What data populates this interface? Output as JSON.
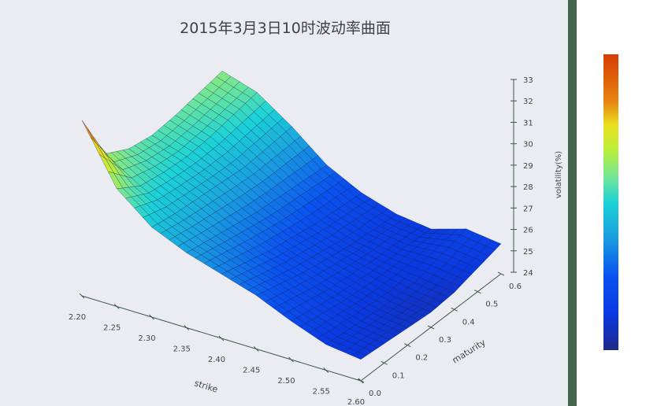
{
  "chart_data": {
    "type": "surface",
    "title": "2015年3月3日10时波动率曲面",
    "xlabel": "strike",
    "ylabel": "maturity",
    "zlabel": "volatility(%)",
    "x_ticks": [
      "2.20",
      "2.25",
      "2.30",
      "2.35",
      "2.40",
      "2.45",
      "2.50",
      "2.55",
      "2.60"
    ],
    "y_ticks": [
      "0.0",
      "0.1",
      "0.2",
      "0.3",
      "0.4",
      "0.5",
      "0.6"
    ],
    "z_ticks": [
      "24",
      "25",
      "26",
      "27",
      "28",
      "29",
      "30",
      "31",
      "32",
      "33"
    ],
    "xlim": [
      2.2,
      2.6
    ],
    "ylim": [
      0,
      0.6
    ],
    "zlim": [
      24,
      33
    ],
    "colorscale": "jet",
    "colorbar": true,
    "grid": true,
    "strikes": [
      2.2,
      2.25,
      2.3,
      2.35,
      2.4,
      2.45,
      2.5,
      2.55,
      2.6
    ],
    "maturities": [
      0.0,
      0.1,
      0.2,
      0.3,
      0.4,
      0.5,
      0.6
    ],
    "volatility": [
      [
        32.2,
        29.5,
        28.2,
        27.5,
        27.0,
        26.5,
        25.8,
        25.2,
        25.0
      ],
      [
        29.8,
        28.8,
        28.0,
        27.3,
        26.7,
        26.2,
        25.6,
        25.1,
        24.9
      ],
      [
        29.2,
        28.6,
        27.9,
        27.1,
        26.4,
        25.9,
        25.4,
        25.0,
        24.8
      ],
      [
        29.0,
        28.5,
        27.8,
        26.9,
        26.2,
        25.7,
        25.3,
        24.9,
        24.7
      ],
      [
        29.1,
        28.6,
        27.7,
        26.8,
        26.0,
        25.5,
        25.2,
        25.0,
        24.8
      ],
      [
        29.3,
        28.8,
        27.8,
        26.7,
        25.9,
        25.4,
        25.2,
        25.3,
        25.1
      ],
      [
        29.5,
        29.0,
        27.9,
        26.6,
        25.8,
        25.3,
        25.1,
        25.6,
        25.4
      ]
    ]
  }
}
